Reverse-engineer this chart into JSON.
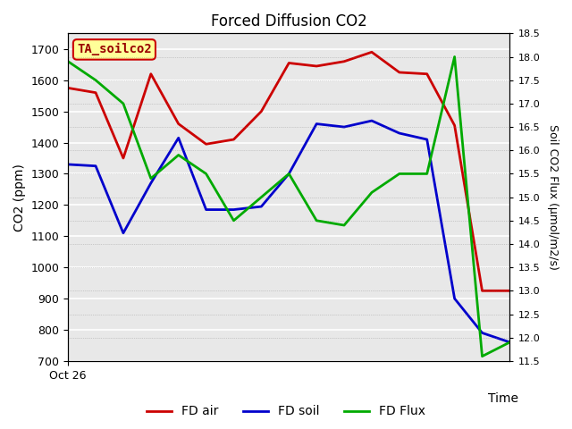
{
  "title": "Forced Diffusion CO2",
  "xlabel": "Time",
  "ylabel_left": "CO2 (ppm)",
  "ylabel_right": "Soil CO2 Flux (μmol/m2/s)",
  "annotation": "TA_soilco2",
  "x": [
    0,
    1,
    2,
    3,
    4,
    5,
    6,
    7,
    8,
    9,
    10,
    11,
    12,
    13,
    14,
    15,
    16
  ],
  "fd_air": [
    1575,
    1560,
    1350,
    1620,
    1460,
    1395,
    1410,
    1500,
    1655,
    1645,
    1660,
    1690,
    1625,
    1620,
    1455,
    925,
    925
  ],
  "fd_soil": [
    1330,
    1325,
    1110,
    1270,
    1415,
    1185,
    1185,
    1195,
    1300,
    1460,
    1450,
    1470,
    1430,
    1410,
    900,
    790,
    760
  ],
  "fd_flux_right": [
    17.9,
    17.5,
    17.0,
    15.4,
    15.9,
    15.5,
    14.5,
    15.0,
    15.5,
    14.5,
    14.4,
    15.1,
    15.5,
    15.5,
    18.0,
    11.6,
    11.9
  ],
  "ylim_left": [
    700,
    1750
  ],
  "ylim_right": [
    11.5,
    18.5
  ],
  "yticks_left": [
    700,
    800,
    900,
    1000,
    1100,
    1200,
    1300,
    1400,
    1500,
    1600,
    1700
  ],
  "yticks_right": [
    11.5,
    12.0,
    12.5,
    13.0,
    13.5,
    14.0,
    14.5,
    15.0,
    15.5,
    16.0,
    16.5,
    17.0,
    17.5,
    18.0,
    18.5
  ],
  "x_tick_label": "Oct 26",
  "bg_color": "#e8e8e8",
  "line_color_air": "#cc0000",
  "line_color_soil": "#0000cc",
  "line_color_flux": "#00aa00",
  "legend_labels": [
    "FD air",
    "FD soil",
    "FD Flux"
  ],
  "annotation_box_facecolor": "#ffff99",
  "annotation_box_edgecolor": "#cc0000",
  "annotation_text_color": "#990000",
  "grid_color_left": "#ffffff",
  "linewidth": 2.0
}
